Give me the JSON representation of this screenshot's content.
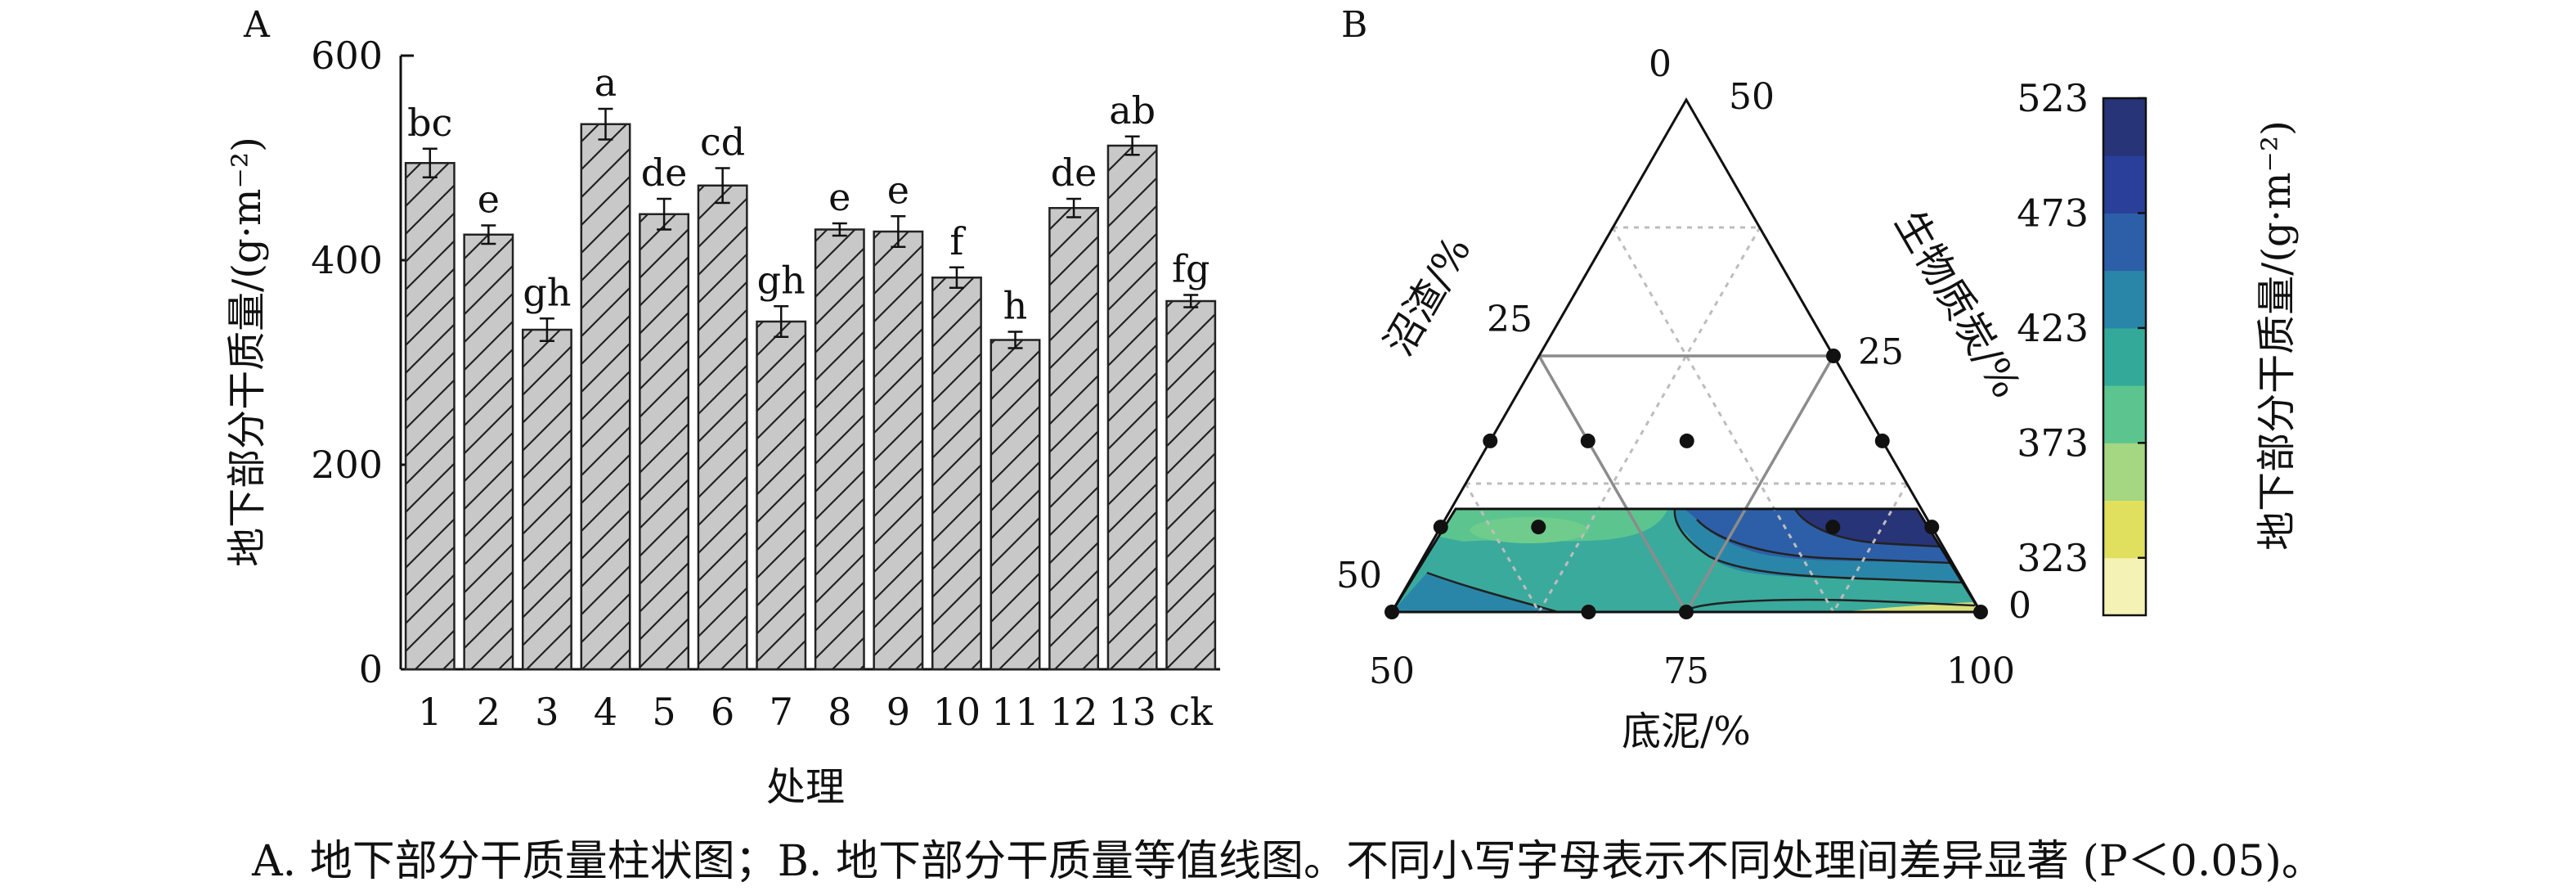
{
  "chart_data": [
    {
      "panel": "A",
      "type": "bar",
      "ylabel": "地下部分干质量/(g·m⁻²)",
      "xlabel": "处理",
      "ylim": [
        0,
        600
      ],
      "yticks": [
        "0",
        "200",
        "400",
        "600"
      ],
      "categories": [
        "1",
        "2",
        "3",
        "4",
        "5",
        "6",
        "7",
        "8",
        "9",
        "10",
        "11",
        "12",
        "13",
        "ck"
      ],
      "values": [
        495,
        425,
        332,
        533,
        445,
        473,
        340,
        430,
        428,
        383,
        322,
        451,
        512,
        360
      ],
      "errors": [
        14,
        9,
        11,
        15,
        15,
        17,
        15,
        6,
        15,
        10,
        8,
        9,
        9,
        6
      ],
      "letters": [
        "bc",
        "e",
        "gh",
        "a",
        "de",
        "cd",
        "gh",
        "e",
        "e",
        "f",
        "h",
        "de",
        "ab",
        "fg"
      ],
      "bar_fill": "#c8c8c8",
      "hatch": "diagonal"
    },
    {
      "panel": "B",
      "type": "heatmap",
      "subtype": "ternary contour",
      "axes": {
        "bottom": {
          "label": "底泥/%",
          "ticks": [
            "50",
            "75",
            "100"
          ]
        },
        "left": {
          "label": "沼渣/%",
          "ticks": [
            "50",
            "25"
          ]
        },
        "right": {
          "label": "生物质炭/%",
          "ticks": [
            "25",
            "0"
          ]
        },
        "top_ticks": [
          "0",
          "50"
        ]
      },
      "colorbar": {
        "label": "地下部分干质量/(g·m⁻²)",
        "ticks": [
          "323",
          "373",
          "423",
          "473",
          "523"
        ],
        "colors": [
          "#f5f2b5",
          "#e0e05e",
          "#a5d681",
          "#5cc58f",
          "#33aa99",
          "#2a86a8",
          "#2d5fa8",
          "#2a3f9a",
          "#283478"
        ]
      },
      "design_points": [
        {
          "sediment": 50,
          "digestate": 50,
          "biochar": 0
        },
        {
          "sediment": 50,
          "digestate": 41.7,
          "biochar": 8.3
        },
        {
          "sediment": 50,
          "digestate": 33.3,
          "biochar": 16.7
        },
        {
          "sediment": 66.7,
          "digestate": 33.3,
          "biochar": 0
        },
        {
          "sediment": 75,
          "digestate": 25,
          "biochar": 0
        },
        {
          "sediment": 75,
          "digestate": 0,
          "biochar": 25
        },
        {
          "sediment": 83.3,
          "digestate": 8.3,
          "biochar": 8.3
        },
        {
          "sediment": 83.3,
          "digestate": 0,
          "biochar": 16.7
        },
        {
          "sediment": 100,
          "digestate": 0,
          "biochar": 0
        },
        {
          "sediment": 58.3,
          "digestate": 25,
          "biochar": 16.7
        },
        {
          "sediment": 58.3,
          "digestate": 33.3,
          "biochar": 8.3
        },
        {
          "sediment": 91.7,
          "digestate": 0,
          "biochar": 8.3
        },
        {
          "sediment": 66.7,
          "digestate": 16.7,
          "biochar": 16.7
        }
      ]
    }
  ],
  "labels": {
    "panel_a": "A",
    "panel_b": "B",
    "caption": "A. 地下部分干质量柱状图；B. 地下部分干质量等值线图。不同小写字母表示不同处理间差异显著 (P＜0.05)。"
  }
}
